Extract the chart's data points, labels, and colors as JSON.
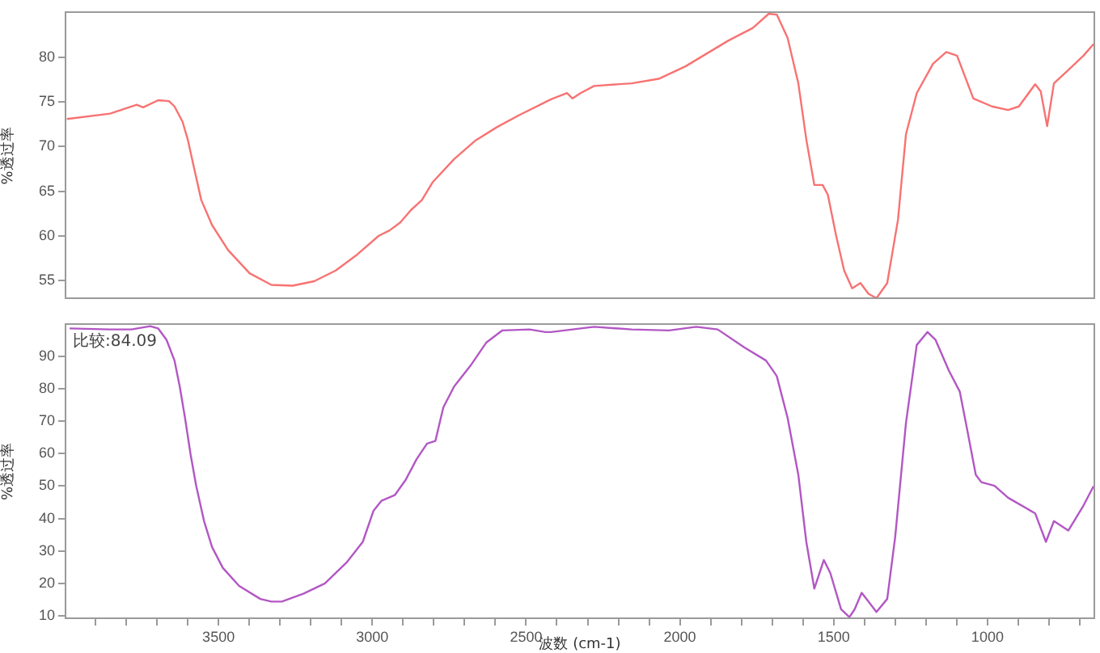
{
  "chart_data": [
    {
      "type": "line",
      "ylabel": "%透过率",
      "xlim": [
        4000,
        650
      ],
      "ylim": [
        52.8,
        85.1
      ],
      "yticks": [
        55,
        60,
        65,
        70,
        75,
        80
      ],
      "tick_labels": "y",
      "marker": "none",
      "color": "#f87272",
      "x": [
        3993,
        3853,
        3766,
        3745,
        3696,
        3661,
        3643,
        3617,
        3600,
        3582,
        3556,
        3521,
        3469,
        3399,
        3328,
        3259,
        3189,
        3119,
        3049,
        2979,
        2944,
        2909,
        2874,
        2839,
        2804,
        2734,
        2664,
        2594,
        2524,
        2419,
        2367,
        2349,
        2323,
        2279,
        2157,
        2069,
        1982,
        1842,
        1763,
        1711,
        1685,
        1650,
        1615,
        1589,
        1563,
        1536,
        1519,
        1492,
        1466,
        1440,
        1413,
        1387,
        1361,
        1326,
        1291,
        1265,
        1230,
        1177,
        1134,
        1099,
        1046,
        985,
        933,
        898,
        845,
        827,
        806,
        784,
        740,
        688,
        655
      ],
      "values": [
        73.1,
        73.7,
        74.7,
        74.4,
        75.2,
        75.1,
        74.5,
        72.8,
        70.8,
        68.0,
        64.0,
        61.2,
        58.4,
        55.8,
        54.5,
        54.4,
        54.9,
        56.1,
        57.9,
        60.0,
        60.6,
        61.5,
        62.9,
        64.0,
        66.0,
        68.6,
        70.7,
        72.2,
        73.5,
        75.3,
        76.0,
        75.4,
        76.0,
        76.8,
        77.1,
        77.6,
        79.0,
        81.9,
        83.3,
        84.9,
        84.8,
        82.2,
        77.1,
        70.8,
        65.7,
        65.7,
        64.6,
        60.0,
        56.1,
        54.1,
        54.7,
        53.5,
        53.0,
        54.7,
        61.8,
        71.4,
        76.0,
        79.3,
        80.6,
        80.2,
        75.4,
        74.5,
        74.1,
        74.5,
        77.0,
        76.2,
        72.3,
        77.1,
        78.5,
        80.2,
        81.5
      ]
    },
    {
      "type": "line",
      "xlabel": "波数 (cm-1)",
      "ylabel": "%透过率",
      "annotations": [
        "比较:84.09"
      ],
      "xlim": [
        4000,
        650
      ],
      "ylim": [
        9,
        100
      ],
      "yticks": [
        10,
        20,
        30,
        40,
        50,
        60,
        70,
        80,
        90
      ],
      "xticks": [
        {
          "value": 3900,
          "label": null
        },
        {
          "value": 3800,
          "label": null
        },
        {
          "value": 3700,
          "label": null
        },
        {
          "value": 3600,
          "label": null
        },
        3500,
        {
          "value": 3400,
          "label": null
        },
        {
          "value": 3300,
          "label": null
        },
        {
          "value": 3200,
          "label": null
        },
        {
          "value": 3100,
          "label": null
        },
        3000,
        {
          "value": 2900,
          "label": null
        },
        {
          "value": 2800,
          "label": null
        },
        {
          "value": 2700,
          "label": null
        },
        {
          "value": 2600,
          "label": null
        },
        2500,
        {
          "value": 2400,
          "label": null
        },
        {
          "value": 2300,
          "label": null
        },
        {
          "value": 2200,
          "label": null
        },
        {
          "value": 2100,
          "label": null
        },
        2000,
        {
          "value": 1900,
          "label": null
        },
        {
          "value": 1800,
          "label": null
        },
        {
          "value": 1700,
          "label": null
        },
        {
          "value": 1600,
          "label": null
        },
        1500,
        {
          "value": 1400,
          "label": null
        },
        {
          "value": 1300,
          "label": null
        },
        {
          "value": 1200,
          "label": null
        },
        {
          "value": 1100,
          "label": null
        },
        1000,
        {
          "value": 900,
          "label": null
        },
        {
          "value": 800,
          "label": null
        },
        {
          "value": 700,
          "label": null
        }
      ],
      "marker": "none",
      "color": "#b257c4",
      "x": [
        3984,
        3853,
        3783,
        3722,
        3696,
        3669,
        3643,
        3626,
        3609,
        3591,
        3573,
        3547,
        3521,
        3486,
        3433,
        3364,
        3328,
        3294,
        3224,
        3154,
        3084,
        3031,
        2996,
        2970,
        2927,
        2891,
        2856,
        2822,
        2795,
        2769,
        2734,
        2681,
        2629,
        2577,
        2489,
        2437,
        2419,
        2279,
        2157,
        2035,
        1947,
        1877,
        1790,
        1720,
        1685,
        1650,
        1615,
        1589,
        1563,
        1532,
        1511,
        1476,
        1449,
        1432,
        1409,
        1387,
        1361,
        1326,
        1300,
        1265,
        1230,
        1195,
        1169,
        1125,
        1090,
        1064,
        1038,
        1020,
        977,
        933,
        845,
        810,
        784,
        737,
        688,
        655
      ],
      "values": [
        98.6,
        98.3,
        98.3,
        99.3,
        98.6,
        95.1,
        88.7,
        80.7,
        71.1,
        59.9,
        50.3,
        39.2,
        31.2,
        24.8,
        19.2,
        15.2,
        14.4,
        14.4,
        16.8,
        20.0,
        26.4,
        32.8,
        42.4,
        45.5,
        47.2,
        52.0,
        58.3,
        63.1,
        63.9,
        74.3,
        80.7,
        87.1,
        94.3,
        98.0,
        98.3,
        97.5,
        97.5,
        99.1,
        98.3,
        98.0,
        99.1,
        98.3,
        92.7,
        88.7,
        83.9,
        71.1,
        53.5,
        32.8,
        18.4,
        27.2,
        23.2,
        12.0,
        9.6,
        12.0,
        17.1,
        14.4,
        11.2,
        15.2,
        34.4,
        69.5,
        93.5,
        97.5,
        95.1,
        85.5,
        79.1,
        66.4,
        53.5,
        51.2,
        50.1,
        46.4,
        41.6,
        32.8,
        39.2,
        36.3,
        44.0,
        50.0
      ]
    }
  ]
}
